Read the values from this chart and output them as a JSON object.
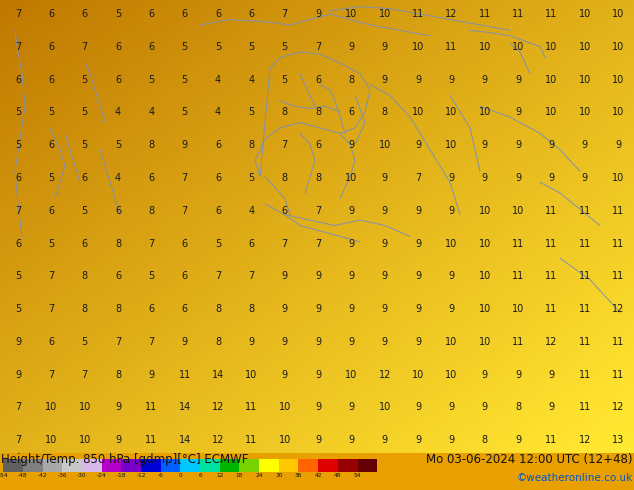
{
  "title_left": "Height/Temp. 850 hPa [gdmp][°C] ECMWF",
  "title_right": "Mo 03-06-2024 12:00 UTC (12+48)",
  "credit": "©weatheronline.co.uk",
  "colorbar_levels": [
    -54,
    -48,
    -42,
    -36,
    -30,
    -24,
    -18,
    -12,
    -6,
    0,
    6,
    12,
    18,
    24,
    30,
    36,
    42,
    48,
    54
  ],
  "colorbar_colors": [
    "#606060",
    "#808080",
    "#a8a8a8",
    "#c8c8c8",
    "#d8b8e8",
    "#b400c8",
    "#7800c8",
    "#0000d8",
    "#0060ff",
    "#00c8ff",
    "#00e0a0",
    "#00b400",
    "#78d200",
    "#ffff00",
    "#ffc800",
    "#ff6400",
    "#e00000",
    "#960000",
    "#640000"
  ],
  "bg_color": "#e8a000",
  "map_colors": {
    "deep_orange": "#d08000",
    "orange": "#e09000",
    "yellow_orange": "#f0b000",
    "light_yellow": "#f8d040",
    "pale_yellow": "#fce880",
    "bright_yellow": "#f5c010"
  },
  "border_color": "#8090b0",
  "number_color": "#1a1a1a",
  "text_color_blue": "#0055cc",
  "font_size_title": 8.5,
  "font_size_credit": 7.5,
  "numbers": [
    [
      7,
      6,
      6,
      5,
      6,
      6,
      6,
      6,
      7,
      9,
      10,
      10,
      11,
      12,
      11,
      11,
      11,
      10,
      10
    ],
    [
      7,
      6,
      7,
      6,
      6,
      5,
      5,
      5,
      5,
      7,
      9,
      9,
      10,
      11,
      10,
      10,
      10,
      10,
      10
    ],
    [
      6,
      6,
      5,
      6,
      5,
      5,
      4,
      4,
      5,
      6,
      8,
      9,
      9,
      9,
      9,
      9,
      10,
      10,
      10
    ],
    [
      5,
      5,
      5,
      4,
      4,
      5,
      4,
      5,
      8,
      8,
      6,
      8,
      10,
      10,
      10,
      9,
      10,
      10,
      10
    ],
    [
      5,
      6,
      5,
      5,
      8,
      9,
      6,
      8,
      7,
      6,
      9,
      10,
      9,
      10,
      9,
      9,
      9,
      9,
      9
    ],
    [
      6,
      5,
      6,
      4,
      6,
      7,
      6,
      5,
      8,
      8,
      10,
      9,
      7,
      9,
      9,
      9,
      9,
      9,
      10
    ],
    [
      7,
      6,
      5,
      6,
      8,
      7,
      6,
      4,
      6,
      7,
      9,
      9,
      9,
      9,
      10,
      10,
      11,
      11,
      11
    ],
    [
      6,
      5,
      6,
      8,
      7,
      6,
      5,
      6,
      7,
      7,
      9,
      9,
      9,
      10,
      10,
      11,
      11,
      11,
      11
    ],
    [
      5,
      7,
      8,
      6,
      5,
      6,
      7,
      7,
      9,
      9,
      9,
      9,
      9,
      9,
      10,
      11,
      11,
      11,
      11
    ],
    [
      5,
      7,
      8,
      8,
      6,
      6,
      8,
      8,
      9,
      9,
      9,
      9,
      9,
      9,
      10,
      10,
      11,
      11,
      12
    ],
    [
      9,
      6,
      5,
      7,
      7,
      9,
      8,
      9,
      9,
      9,
      9,
      9,
      9,
      10,
      10,
      11,
      12,
      11,
      11
    ],
    [
      9,
      7,
      7,
      8,
      9,
      11,
      14,
      10,
      9,
      9,
      10,
      12,
      10,
      10,
      9,
      9,
      9,
      11,
      11
    ],
    [
      7,
      10,
      10,
      9,
      11,
      14,
      12,
      11,
      10,
      9,
      9,
      10,
      9,
      9,
      9,
      8,
      9,
      11,
      12
    ],
    [
      7,
      10,
      10,
      9,
      11,
      14,
      12,
      11,
      10,
      9,
      9,
      9,
      9,
      9,
      8,
      9,
      11,
      12,
      13
    ]
  ],
  "grid_cols": 19,
  "grid_rows": 14
}
